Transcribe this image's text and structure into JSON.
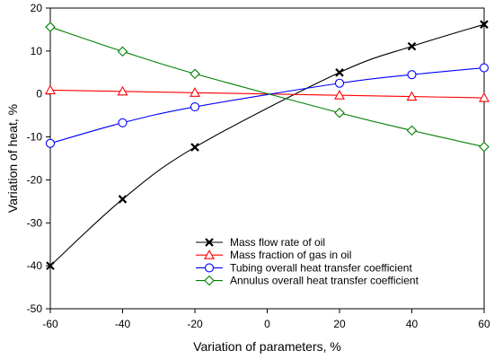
{
  "chart_data": {
    "type": "line",
    "title": "",
    "xlabel": "Variation of parameters, %",
    "ylabel": "Variation of heat, %",
    "xlim": [
      -60,
      60
    ],
    "ylim": [
      -50,
      20
    ],
    "xticks": [
      -60,
      -40,
      -20,
      0,
      20,
      40,
      60
    ],
    "yticks": [
      -50,
      -40,
      -30,
      -20,
      -10,
      0,
      10,
      20
    ],
    "grid": false,
    "legend_position": "bottom-right",
    "series": [
      {
        "name": "Mass flow rate of oil",
        "color": "#000000",
        "marker": "x",
        "x": [
          -60,
          -40,
          -20,
          20,
          40,
          60
        ],
        "y": [
          -40.0,
          -24.5,
          -12.4,
          5.0,
          11.1,
          16.2
        ]
      },
      {
        "name": "Mass fraction of gas in oil",
        "color": "#ff0000",
        "marker": "triangle",
        "x": [
          -60,
          -40,
          -20,
          20,
          40,
          60
        ],
        "y": [
          0.9,
          0.6,
          0.3,
          -0.3,
          -0.6,
          -0.9
        ]
      },
      {
        "name": "Tubing overall heat transfer coefficient",
        "color": "#0000ff",
        "marker": "circle",
        "x": [
          -60,
          -40,
          -20,
          20,
          40,
          60
        ],
        "y": [
          -11.5,
          -6.7,
          -3.0,
          2.5,
          4.5,
          6.1
        ]
      },
      {
        "name": "Annulus overall heat transfer coefficient",
        "color": "#008000",
        "marker": "diamond",
        "x": [
          -60,
          -40,
          -20,
          20,
          40,
          60
        ],
        "y": [
          15.6,
          9.9,
          4.7,
          -4.4,
          -8.5,
          -12.3
        ]
      }
    ]
  }
}
